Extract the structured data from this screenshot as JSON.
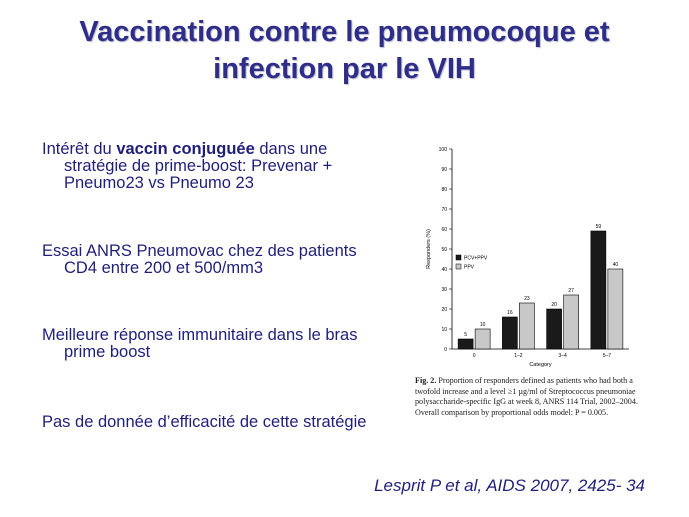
{
  "slide": {
    "title_line1": "Vaccination contre le pneumocoque et",
    "title_line2": "infection par le VIH",
    "bullets": [
      {
        "pre": "Intérêt du ",
        "bold": "vaccin conjuguée",
        "post": " dans une stratégie de prime-boost: Prevenar + Pneumo23 vs Pneumo 23"
      },
      {
        "pre": "Essai ANRS Pneumovac chez des patients CD4 entre 200 et 500/mm3",
        "bold": "",
        "post": ""
      },
      {
        "pre": "Meilleure réponse immunitaire dans le bras prime boost",
        "bold": "",
        "post": ""
      },
      {
        "pre": "Pas de donnée d’efficacité de cette stratégie",
        "bold": "",
        "post": ""
      }
    ],
    "citation": "Lesprit P et al, AIDS 2007, 2425- 34"
  },
  "figure": {
    "caption_label": "Fig. 2.",
    "caption_text": "Proportion of responders defined as patients who had both a twofold increase and a level ≥1 µg/ml of Streptococcus pneumoniae polysaccharide-specific IgG at week 8, ANRS 114 Trial, 2002–2004. Overall comparison by proportional odds model: P = 0.005."
  },
  "chart_data": {
    "type": "bar",
    "categories": [
      "0",
      "1–2",
      "3–4",
      "5–7"
    ],
    "series": [
      {
        "name": "PCV+PPV",
        "values": [
          5,
          16,
          20,
          59
        ],
        "color": "#1a1a1a"
      },
      {
        "name": "PPV",
        "values": [
          10,
          23,
          27,
          40
        ],
        "color": "#c8c8c8"
      }
    ],
    "xlabel": "Category",
    "ylabel": "Responders (%)",
    "ylim": [
      0,
      100
    ],
    "yticks": [
      0,
      10,
      20,
      30,
      40,
      50,
      60,
      70,
      80,
      90,
      100
    ],
    "legend_position": "left",
    "grid": false
  }
}
